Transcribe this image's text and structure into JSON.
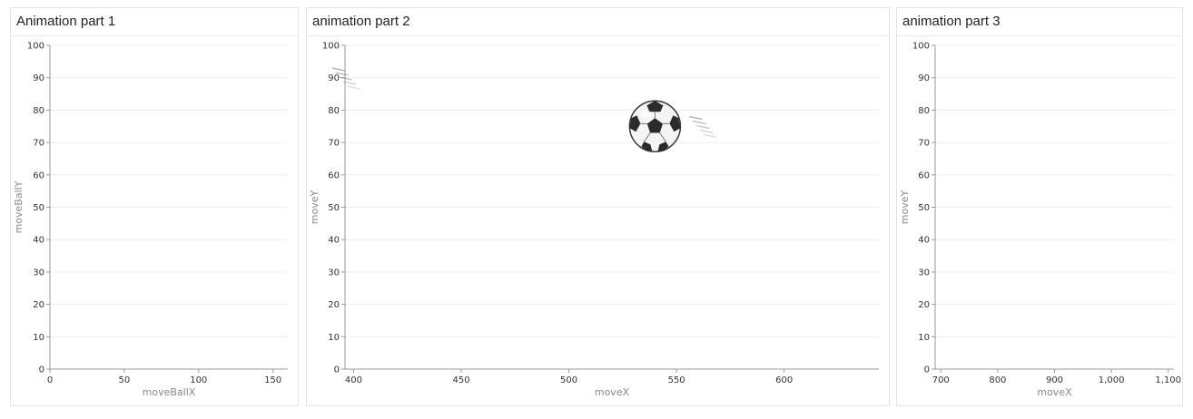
{
  "panels": {
    "p1": {
      "title": "Animation part 1"
    },
    "p2": {
      "title": "animation part 2"
    },
    "p3": {
      "title": "animation part 3"
    }
  },
  "colors": {
    "grid": "#ececec",
    "axis": "#999999",
    "tick_text": "#333333",
    "axis_title": "#888888"
  },
  "chart_data": [
    {
      "type": "scatter",
      "title": "Animation part 1",
      "xlabel": "moveBallX",
      "ylabel": "moveBallY",
      "xlim": [
        0,
        160
      ],
      "ylim": [
        0,
        100
      ],
      "x_ticks": [
        0,
        50,
        100,
        150
      ],
      "x_tick_labels": [
        "0",
        "50",
        "100",
        "150"
      ],
      "y_ticks": [
        0,
        10,
        20,
        30,
        40,
        50,
        60,
        70,
        80,
        90,
        100
      ],
      "grid": true,
      "points": []
    },
    {
      "type": "scatter",
      "title": "animation part 2",
      "xlabel": "moveX",
      "ylabel": "moveY",
      "xlim": [
        396,
        644
      ],
      "ylim": [
        0,
        100
      ],
      "x_ticks": [
        400,
        450,
        500,
        550,
        600
      ],
      "x_tick_labels": [
        "400",
        "450",
        "500",
        "550",
        "600"
      ],
      "y_ticks": [
        0,
        10,
        20,
        30,
        40,
        50,
        60,
        70,
        80,
        90,
        100
      ],
      "grid": true,
      "points": [
        {
          "x": 540,
          "y": 75,
          "icon": "soccer-ball-icon"
        }
      ],
      "trails": [
        {
          "x": 390,
          "y": 93
        },
        {
          "x": 556,
          "y": 78
        }
      ]
    },
    {
      "type": "scatter",
      "title": "animation part 3",
      "xlabel": "moveX",
      "ylabel": "moveY",
      "xlim": [
        690,
        1110
      ],
      "ylim": [
        0,
        100
      ],
      "x_ticks": [
        700,
        800,
        900,
        1000,
        1100
      ],
      "x_tick_labels": [
        "700",
        "800",
        "900",
        "1,000",
        "1,100"
      ],
      "y_ticks": [
        0,
        10,
        20,
        30,
        40,
        50,
        60,
        70,
        80,
        90,
        100
      ],
      "grid": true,
      "points": []
    }
  ]
}
